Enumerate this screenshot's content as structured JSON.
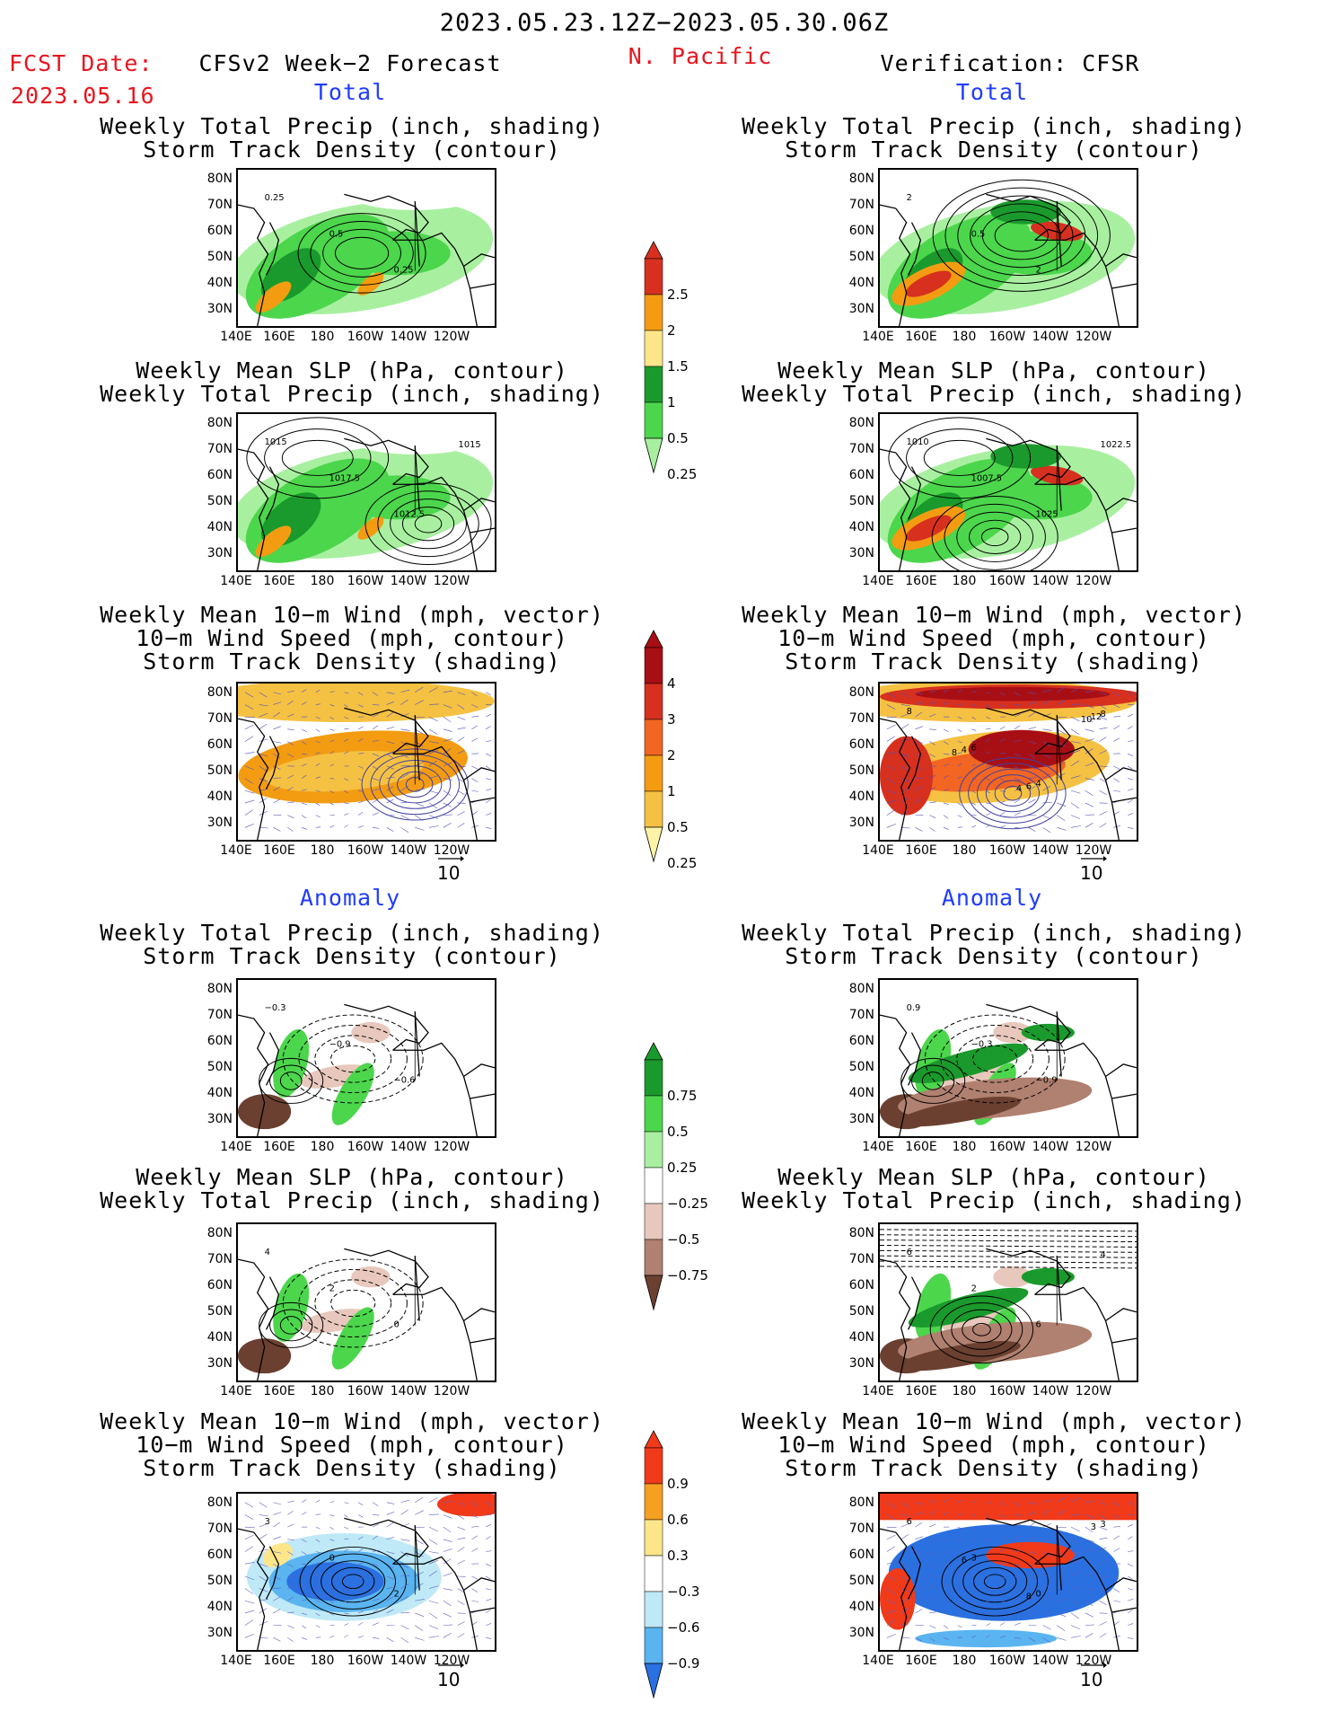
{
  "header": {
    "date_range": "2023.05.23.12Z−2023.05.30.06Z",
    "fcst_label": "FCST Date:",
    "fcst_date": "2023.05.16",
    "forecast_title": "CFSv2 Week−2 Forecast",
    "region": "N. Pacific",
    "verification_title": "Verification: CFSR"
  },
  "section_labels": {
    "total": "Total",
    "anomaly": "Anomaly"
  },
  "panel_titles": {
    "precip_track": [
      "Weekly Total Precip (inch, shading)",
      "Storm Track Density (contour)"
    ],
    "slp_precip": [
      "Weekly Mean SLP (hPa, contour)",
      "Weekly Total Precip (inch, shading)"
    ],
    "wind_track": [
      "Weekly Mean 10−m Wind (mph, vector)",
      "10−m Wind Speed (mph, contour)",
      "Storm Track Density (shading)"
    ]
  },
  "axes": {
    "lat": [
      "80N",
      "70N",
      "60N",
      "50N",
      "40N",
      "30N"
    ],
    "lon": [
      "140E",
      "160E",
      "180",
      "160W",
      "140W",
      "120W"
    ]
  },
  "vector_ref": "10",
  "colorbars": {
    "precip_total": {
      "labels": [
        "2.5",
        "2",
        "1.5",
        "1",
        "0.5",
        "0.25"
      ],
      "colors": [
        "#d7301f",
        "#f39c12",
        "#fde68a",
        "#1a9a2c",
        "#4cd64c",
        "#a8f0a0"
      ]
    },
    "track_total": {
      "labels": [
        "4",
        "3",
        "2",
        "1",
        "0.5",
        "0.25"
      ],
      "colors": [
        "#a80f14",
        "#d7301f",
        "#f26522",
        "#f39c12",
        "#f5c142",
        "#fff3a8"
      ]
    },
    "precip_anom": {
      "labels": [
        "0.75",
        "0.5",
        "0.25",
        "−0.25",
        "−0.5",
        "−0.75"
      ],
      "colors": [
        "#1a9a2c",
        "#4cd64c",
        "#a8f0a0",
        "#ffffff",
        "#e8c8bc",
        "#b08070",
        "#6b4030"
      ]
    },
    "track_anom": {
      "labels": [
        "0.9",
        "0.6",
        "0.3",
        "−0.3",
        "−0.6",
        "−0.9"
      ],
      "colors": [
        "#f03a1a",
        "#f5a020",
        "#fde68a",
        "#ffffff",
        "#bfe9f7",
        "#5ab4f0",
        "#2a70e0"
      ]
    }
  },
  "contour_labels": {
    "fcst_precip": [
      "0.25",
      "0.5",
      "0.25"
    ],
    "fcst_slp": [
      "1015",
      "1017.5",
      "1012.5",
      "1015"
    ],
    "fcst_anom_precip": [
      "−0.3",
      "−0.9",
      "−0.6"
    ],
    "fcst_anom_slp": [
      "4",
      "2",
      "0"
    ],
    "fcst_anom_wind": [
      "3",
      "0",
      "2"
    ],
    "ver_precip": [
      "2",
      "0.5",
      "2"
    ],
    "ver_slp": [
      "1010",
      "1007.5",
      "1025",
      "1022.5"
    ],
    "ver_wind": [
      "8",
      "6",
      "4",
      "8",
      "4",
      "6",
      "12",
      "8",
      "4",
      "10"
    ],
    "ver_anom_precip": [
      "0.9",
      "−0.3",
      "−0.9"
    ],
    "ver_anom_slp": [
      "6",
      "2",
      "6",
      "4"
    ],
    "ver_anom_wind": [
      "6",
      "3",
      "0",
      "3",
      "6",
      "8",
      "3"
    ]
  }
}
